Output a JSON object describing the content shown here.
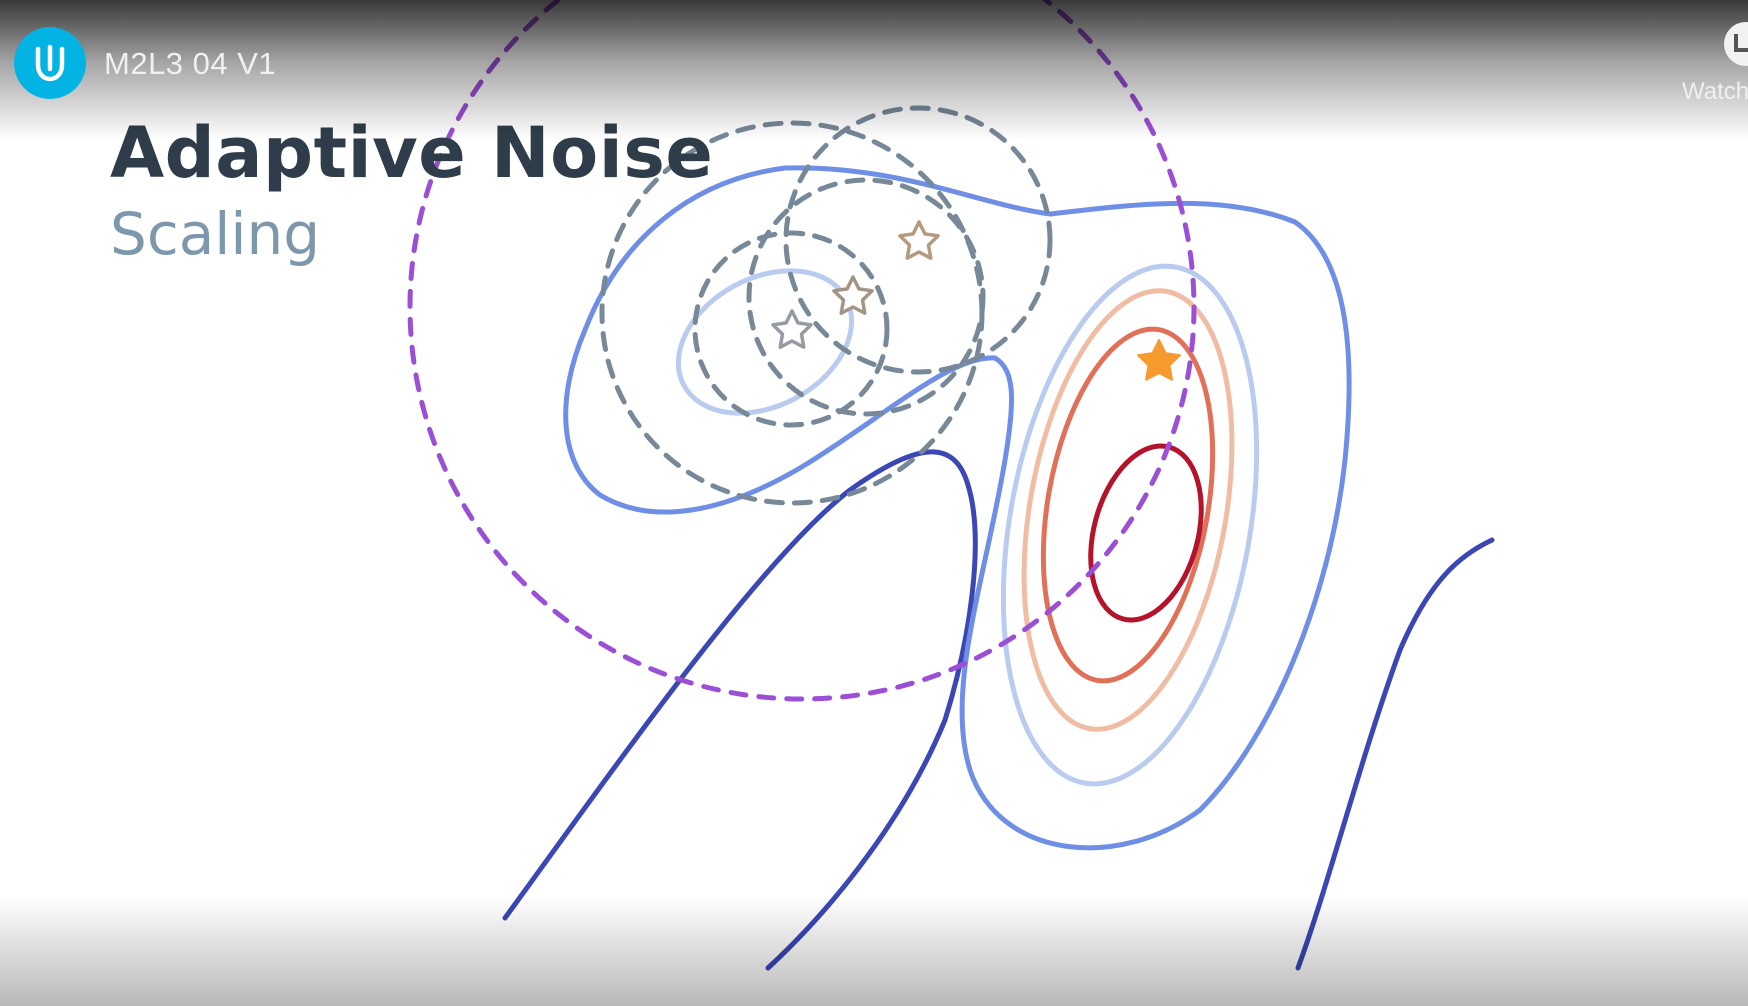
{
  "video": {
    "title": "M2L3 04 V1",
    "watch_later_label": "Watch",
    "channel_logo_icon": "udacity-logo-icon"
  },
  "slide": {
    "title": "Adaptive Noise",
    "subtitle": "Scaling"
  },
  "colors": {
    "brand_accent": "#02b3e4",
    "title_color": "#2e3d49",
    "subtitle_color": "#7d97ad",
    "search_circle": "#9b4fd4",
    "sample_circle": "#778899",
    "contour_dark_blue": "#3a47b5",
    "contour_mid_blue": "#6f8fe6",
    "contour_light_blue": "#b9ccef",
    "contour_peach": "#f0bda4",
    "contour_orange_red": "#e07158",
    "contour_dark_red": "#b3142b",
    "best_star": "#f79a2e"
  },
  "markers": {
    "best_star_icon": "filled-star-icon",
    "sample_star_icon": "outline-star-icon"
  }
}
